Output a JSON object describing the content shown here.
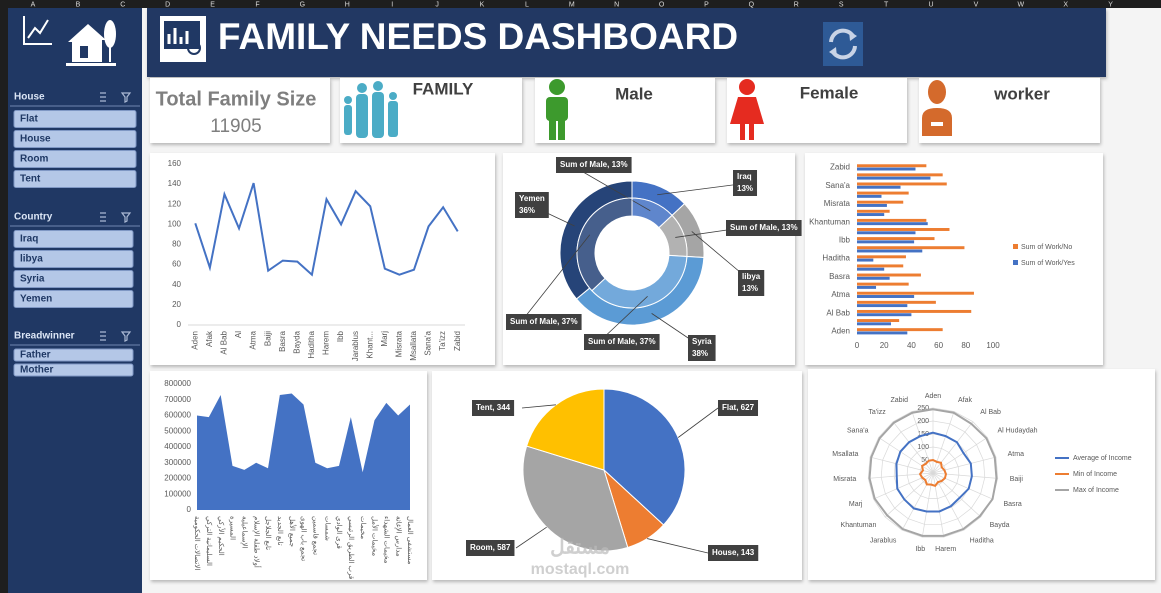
{
  "column_headers": [
    "A",
    "B",
    "C",
    "D",
    "E",
    "F",
    "G",
    "H",
    "I",
    "J",
    "K",
    "L",
    "M",
    "N",
    "O",
    "P",
    "Q",
    "R",
    "S",
    "T",
    "U",
    "V",
    "W",
    "X",
    "Y"
  ],
  "header": {
    "title": "FAMILY NEEDS DASHBOARD"
  },
  "slicers": [
    {
      "title": "House",
      "items": [
        "Flat",
        "House",
        "Room",
        "Tent"
      ]
    },
    {
      "title": "Country",
      "items": [
        "Iraq",
        "libya",
        "Syria",
        "Yemen"
      ]
    },
    {
      "title": "Breadwinner",
      "items": [
        "Father",
        "Mother"
      ]
    }
  ],
  "cards": [
    {
      "label": "Total Family Size",
      "value": 11905
    },
    {
      "label": "FAMILY"
    },
    {
      "label": "Male"
    },
    {
      "label": "Female"
    },
    {
      "label": "worker"
    }
  ],
  "watermark": {
    "arabic": "مستقل",
    "latin": "mostaql.com"
  },
  "chart_data": [
    {
      "type": "line",
      "categories": [
        "Aden",
        "Afak",
        "Al Bab",
        "Al",
        "Atma",
        "Baiji",
        "Basra",
        "Bayda",
        "Haditha",
        "Harem",
        "Ibb",
        "Jarablus",
        "Khant...",
        "Marj",
        "Misrata",
        "Msallata",
        "Sana'a",
        "Ta'izz",
        "Zabid"
      ],
      "values": [
        101,
        57,
        130,
        96,
        141,
        54,
        64,
        63,
        50,
        125,
        100,
        133,
        118,
        56,
        50,
        55,
        98,
        117,
        93
      ],
      "color": "#4472c4",
      "ylim": [
        0,
        160
      ],
      "yticks": [
        0,
        20,
        40,
        60,
        80,
        100,
        120,
        140,
        160
      ]
    },
    {
      "type": "donut",
      "categories": [
        "Iraq",
        "libya",
        "Syria",
        "Yemen"
      ],
      "colors": [
        "#4472c4",
        "#a5a5a5",
        "#5b9bd5",
        "#264478"
      ],
      "series": [
        {
          "values": [
            13,
            13,
            38,
            36
          ],
          "value_labels": [
            "13%",
            "13%",
            "38%",
            "36%"
          ]
        },
        {
          "values": [
            13,
            13,
            37,
            37
          ],
          "value_labels": [
            "Sum of Male, 13%",
            "Sum of Male, 13%",
            "Sum of Male, 37%",
            "Sum of Male, 37%"
          ]
        }
      ]
    },
    {
      "type": "hbar",
      "categories": [
        "Aden",
        null,
        "Al Bab",
        null,
        "Atma",
        null,
        "Basra",
        null,
        "Haditha",
        null,
        "Ibb",
        null,
        "Khantuman",
        null,
        "Misrata",
        null,
        "Sana'a",
        null,
        "Zabid"
      ],
      "series": [
        {
          "name": "Sum of Work/No",
          "color": "#ed7d31",
          "values": [
            63,
            31,
            84,
            58,
            86,
            38,
            47,
            34,
            36,
            79,
            57,
            68,
            51,
            24,
            34,
            38,
            66,
            63,
            51
          ]
        },
        {
          "name": "Sum of Work/Yes",
          "color": "#4472c4",
          "values": [
            37,
            25,
            40,
            37,
            42,
            14,
            24,
            20,
            12,
            48,
            42,
            43,
            52,
            20,
            22,
            18,
            32,
            54,
            43
          ]
        }
      ],
      "xlim": [
        0,
        100
      ],
      "xticks": [
        0,
        20,
        40,
        60,
        80,
        100
      ],
      "legend": "right"
    },
    {
      "type": "area",
      "categories": [
        "الاتصالات الحكومية",
        "السليمانية التركي",
        "الحكيم الأركي",
        "المسيرة",
        "الإسماعيلية",
        "أولاد طفلة الإسلام",
        "تابع الجلاجل",
        "تابع الجديد",
        "جميع الأهل",
        "تجمع باب الهوى",
        "تجمع قاسمين",
        "شمسات",
        "قرى الوادي",
        "قرب الطريق الرئيسي",
        "مخيمات",
        "مخيمات الأمل",
        "مخيمات الشهداء",
        "مدارس الإغاثة",
        "مستشفى العمال"
      ],
      "values": [
        600000,
        590000,
        730000,
        280000,
        255000,
        300000,
        265000,
        730000,
        740000,
        670000,
        300000,
        265000,
        280000,
        590000,
        240000,
        570000,
        680000,
        600000,
        670000
      ],
      "color": "#4472c4",
      "ylim": [
        0,
        800000
      ],
      "yticks": [
        0,
        100000,
        200000,
        300000,
        400000,
        500000,
        600000,
        700000,
        800000
      ]
    },
    {
      "type": "pie",
      "categories": [
        "Flat",
        "House",
        "Room",
        "Tent"
      ],
      "values": [
        627,
        143,
        587,
        344
      ],
      "value_labels": [
        "Flat, 627",
        "House, 143",
        "Room, 587",
        "Tent, 344"
      ],
      "colors": [
        "#4472c4",
        "#ed7d31",
        "#a5a5a5",
        "#ffc000"
      ]
    },
    {
      "type": "radar",
      "categories": [
        "Aden",
        "Afak",
        "Al Bab",
        "Al Hudaydah",
        "Atma",
        "Baiji",
        "Basra",
        "Bayda",
        "Haditha",
        "Harem",
        "Ibb",
        "Jarablus",
        "Khantuman",
        "Marj",
        "Misrata",
        "Msallata",
        "Sana'a",
        "Ta'izz",
        "Zabid"
      ],
      "series": [
        {
          "name": "Average of Income",
          "color": "#4472c4",
          "values": [
            155,
            150,
            150,
            140,
            150,
            150,
            150,
            140,
            145,
            150,
            150,
            155,
            150,
            150,
            140,
            145,
            150,
            150,
            150
          ]
        },
        {
          "name": "Min of Income",
          "color": "#ed7d31",
          "values": [
            50,
            45,
            50,
            40,
            45,
            50,
            50,
            45,
            40,
            50,
            45,
            50,
            40,
            45,
            50,
            40,
            50,
            45,
            50
          ]
        },
        {
          "name": "Max of Income",
          "color": "#a5a5a5",
          "values": [
            245,
            245,
            240,
            245,
            245,
            245,
            250,
            245,
            245,
            245,
            245,
            245,
            240,
            245,
            245,
            245,
            245,
            245,
            245
          ]
        }
      ],
      "rlim": [
        0,
        250
      ],
      "rticks": [
        50,
        100,
        150,
        200,
        250
      ],
      "legend": "right"
    }
  ]
}
